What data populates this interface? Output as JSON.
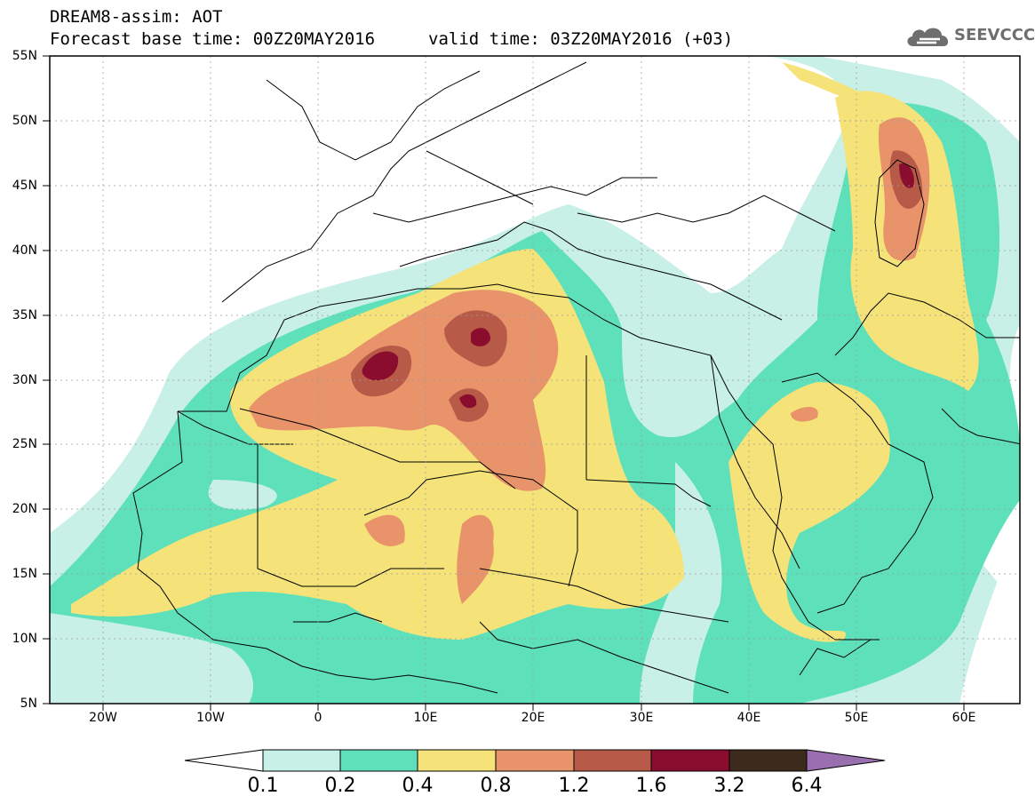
{
  "header": {
    "title": "DREAM8-assim: AOT",
    "base_time": "Forecast base time: 00Z20MAY2016",
    "valid_time": "valid time: 03Z20MAY2016 (+03)",
    "logo_text": "SEEVCCC",
    "logo_icon": "cloud-icon"
  },
  "map": {
    "lat_labels": [
      "55N",
      "50N",
      "45N",
      "40N",
      "35N",
      "30N",
      "25N",
      "20N",
      "15N",
      "10N",
      "5N"
    ],
    "lon_labels": [
      "20W",
      "10W",
      "0",
      "10E",
      "20E",
      "30E",
      "40E",
      "50E",
      "60E"
    ],
    "lat_range": [
      5,
      55
    ],
    "lon_range": [
      -25,
      65
    ]
  },
  "colorbar": {
    "levels": [
      "0.1",
      "0.2",
      "0.4",
      "0.8",
      "1.2",
      "1.6",
      "3.2",
      "6.4"
    ],
    "colors": [
      "#ffffff",
      "#c9f0e6",
      "#5ee0bb",
      "#f5e37a",
      "#e8936a",
      "#b85a48",
      "#8a0d2e",
      "#3c2a1c",
      "#9a6fb0"
    ]
  },
  "aot_colors": {
    "c01": "#c9f0e6",
    "c02": "#5ee0bb",
    "c04": "#f5e37a",
    "c08": "#e8936a",
    "c12": "#b85a48",
    "c16": "#8a0d2e"
  }
}
